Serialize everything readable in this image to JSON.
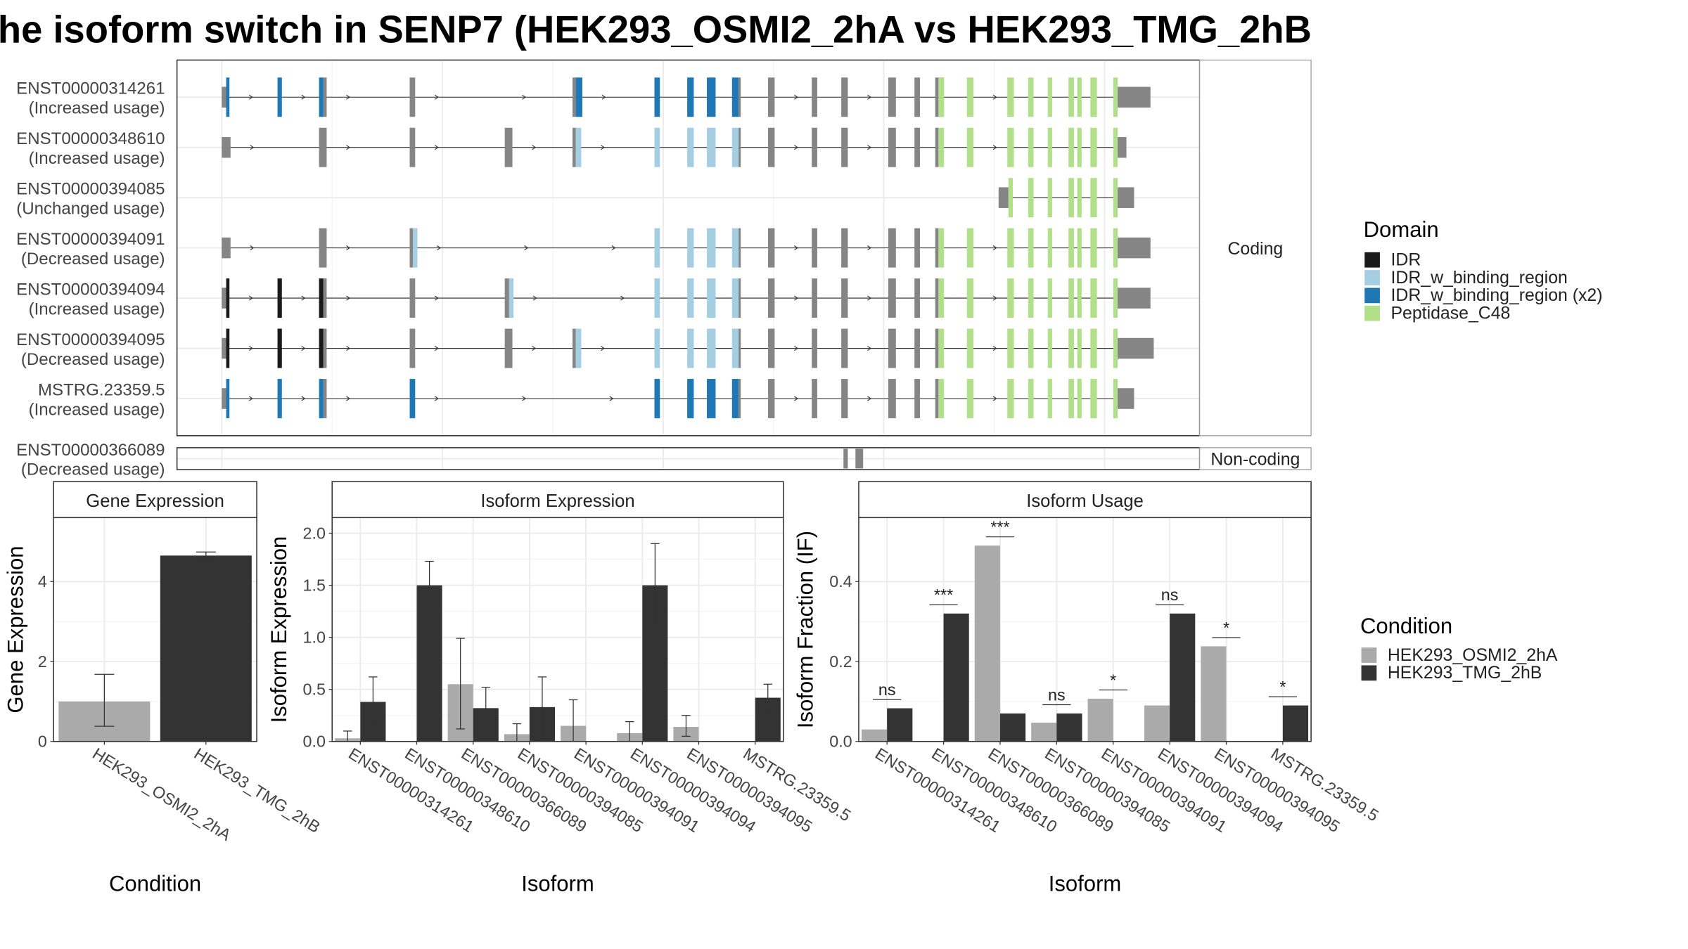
{
  "chart_data": [
    {
      "type": "gene-structure",
      "title": "he isoform switch in SENP7 (HEK293_OSMI2_2hA vs HEK293_TMG_2hB",
      "facets": [
        "Coding",
        "Non-coding"
      ],
      "transcripts": [
        {
          "id": "ENST00000314261",
          "usage": "(Increased usage)",
          "group": "Coding"
        },
        {
          "id": "ENST00000348610",
          "usage": "(Increased usage)",
          "group": "Coding"
        },
        {
          "id": "ENST00000394085",
          "usage": "(Unchanged usage)",
          "group": "Coding"
        },
        {
          "id": "ENST00000394091",
          "usage": "(Decreased usage)",
          "group": "Coding"
        },
        {
          "id": "ENST00000394094",
          "usage": "(Increased usage)",
          "group": "Coding"
        },
        {
          "id": "ENST00000394095",
          "usage": "(Decreased usage)",
          "group": "Coding"
        },
        {
          "id": "MSTRG.23359.5",
          "usage": "(Increased usage)",
          "group": "Coding"
        },
        {
          "id": "ENST00000366089",
          "usage": "(Decreased usage)",
          "group": "Non-coding"
        }
      ],
      "legend": {
        "title": "Domain",
        "items": [
          {
            "name": "IDR",
            "color": "#1a1a1a"
          },
          {
            "name": "IDR_w_binding_region",
            "color": "#a6cee3"
          },
          {
            "name": "IDR_w_binding_region (x2)",
            "color": "#1f78b4"
          },
          {
            "name": "Peptidase_C48",
            "color": "#b2df8a"
          }
        ]
      }
    },
    {
      "type": "bar",
      "title": "Gene Expression",
      "xlabel": "Condition",
      "ylabel": "Gene Expression",
      "ylim": [
        0,
        5.6
      ],
      "yticks": [
        "0",
        "2",
        "4"
      ],
      "categories": [
        "HEK293_OSMI2_2hA",
        "HEK293_TMG_2hB"
      ],
      "values": [
        1.0,
        4.65
      ],
      "error_low": [
        0.38,
        4.58
      ],
      "error_high": [
        1.68,
        4.74
      ]
    },
    {
      "type": "bar",
      "title": "Isoform Expression",
      "xlabel": "Isoform",
      "ylabel": "Isoform Expression",
      "ylim": [
        0,
        2.15
      ],
      "yticks": [
        "0.0",
        "0.5",
        "1.0",
        "1.5",
        "2.0"
      ],
      "categories": [
        "ENST00000314261",
        "ENST00000348610",
        "ENST00000366089",
        "ENST00000394085",
        "ENST00000394091",
        "ENST00000394094",
        "ENST00000394095",
        "MSTRG.23359.5"
      ],
      "series": [
        {
          "name": "HEK293_OSMI2_2hA",
          "values": [
            0.03,
            0.0,
            0.55,
            0.07,
            0.15,
            0.08,
            0.14,
            0.0
          ],
          "error_low": [
            0.0,
            0.0,
            0.12,
            0.0,
            0.0,
            0.0,
            0.05,
            0.0
          ],
          "error_high": [
            0.1,
            0.0,
            0.99,
            0.17,
            0.4,
            0.19,
            0.25,
            0.0
          ]
        },
        {
          "name": "HEK293_TMG_2hB",
          "values": [
            0.38,
            1.5,
            0.32,
            0.33,
            0.0,
            1.5,
            0.0,
            0.42
          ],
          "error_low": [
            0.16,
            1.27,
            0.11,
            0.03,
            0.0,
            1.1,
            0.0,
            0.3
          ],
          "error_high": [
            0.62,
            1.73,
            0.52,
            0.62,
            0.0,
            1.9,
            0.0,
            0.55
          ]
        }
      ]
    },
    {
      "type": "bar",
      "title": "Isoform Usage",
      "xlabel": "Isoform",
      "ylabel": "Isoform Fraction (IF)",
      "ylim": [
        0,
        0.56
      ],
      "yticks": [
        "0.0",
        "0.2",
        "0.4"
      ],
      "categories": [
        "ENST00000314261",
        "ENST00000348610",
        "ENST00000366089",
        "ENST00000394085",
        "ENST00000394091",
        "ENST00000394094",
        "ENST00000394095",
        "MSTRG.23359.5"
      ],
      "series": [
        {
          "name": "HEK293_OSMI2_2hA",
          "values": [
            0.03,
            0.0,
            0.49,
            0.047,
            0.107,
            0.09,
            0.238,
            0.0
          ]
        },
        {
          "name": "HEK293_TMG_2hB",
          "values": [
            0.083,
            0.32,
            0.07,
            0.07,
            0.0,
            0.32,
            0.0,
            0.09
          ]
        }
      ],
      "significance": [
        "ns",
        "***",
        "***",
        "ns",
        "*",
        "ns",
        "*",
        "*"
      ]
    }
  ],
  "condition_legend": {
    "title": "Condition",
    "items": [
      {
        "name": "HEK293_OSMI2_2hA",
        "color": "#aaaaaa"
      },
      {
        "name": "HEK293_TMG_2hB",
        "color": "#333333"
      }
    ]
  }
}
